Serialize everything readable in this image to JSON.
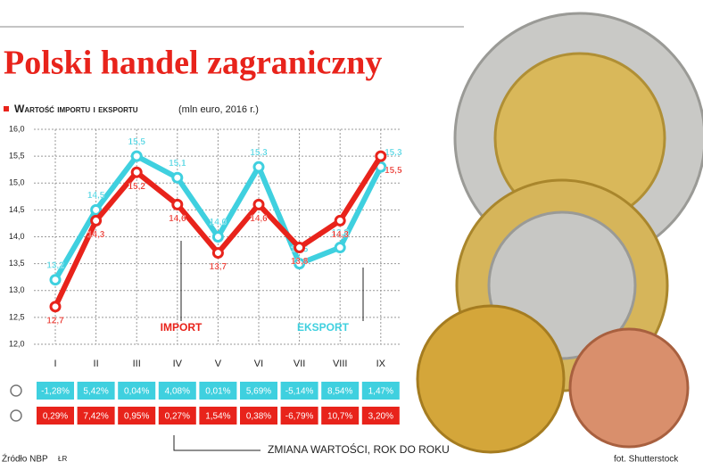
{
  "chart_data": {
    "type": "line",
    "title": "Polski handel zagraniczny",
    "subtitle": "Wartość importu i eksportu",
    "unit_note": "(mln euro, 2016 r.)",
    "categories": [
      "I",
      "II",
      "III",
      "IV",
      "V",
      "VI",
      "VII",
      "VIII",
      "IX"
    ],
    "series": [
      {
        "name": "IMPORT",
        "color": "#e8231b",
        "values": [
          12.7,
          14.3,
          15.2,
          14.6,
          13.7,
          14.6,
          13.8,
          14.3,
          15.5
        ],
        "value_labels": [
          "12,7",
          "14,3",
          "15,2",
          "14,6",
          "13,7",
          "14,6",
          "13,8",
          "14,3",
          "15,5"
        ]
      },
      {
        "name": "EKSPORT",
        "color": "#3fd0df",
        "values": [
          13.2,
          14.5,
          15.5,
          15.1,
          14.0,
          15.3,
          13.5,
          13.8,
          15.3
        ],
        "value_labels": [
          "13,2",
          "14,5",
          "15,5",
          "15,1",
          "14,0",
          "15,3",
          "13,5",
          "13,8",
          "15,3"
        ]
      }
    ],
    "ylim": [
      12,
      16
    ],
    "yticks": [
      {
        "value": 12,
        "label": "12,0"
      },
      {
        "value": 12.5,
        "label": "12,5"
      },
      {
        "value": 13,
        "label": "13,0"
      },
      {
        "value": 13.5,
        "label": "13,5"
      },
      {
        "value": 14,
        "label": "14,0"
      },
      {
        "value": 14.5,
        "label": "14,5"
      },
      {
        "value": 15,
        "label": "15,0"
      },
      {
        "value": 15.5,
        "label": "15,5"
      },
      {
        "value": 16,
        "label": "16,0"
      }
    ],
    "grid": true
  },
  "change_table": {
    "title": "ZMIANA WARTOŚCI, ROK DO ROKU",
    "rows": [
      [
        "-1,28%",
        "5,42%",
        "0,04%",
        "4,08%",
        "0,01%",
        "5,69%",
        "-5,14%",
        "8,54%",
        "1,47%"
      ],
      [
        "0,29%",
        "7,42%",
        "0,95%",
        "0,27%",
        "1,54%",
        "0,38%",
        "-6,79%",
        "10,7%",
        "3,20%"
      ]
    ]
  },
  "footer": {
    "source": "Źródło NBP",
    "author": "ŁR",
    "photo": "fot. Shutterstock"
  }
}
